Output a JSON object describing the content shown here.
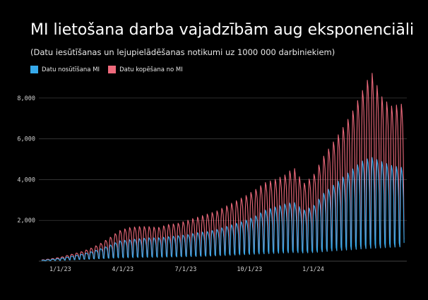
{
  "header": {
    "title": "MI lietošana darba vajadzībām aug eksponenciāli",
    "subtitle": "(Datu iesūtīšanas un lejupielādēšanas notikumi uz 1000 000 darbiniekiem)"
  },
  "colors": {
    "upload": "#36a9ea",
    "copy": "#ee6a7c",
    "grid": "#3a3a3a",
    "background": "#000000"
  },
  "chart_data": {
    "type": "line",
    "x_range": [
      "2022-12-01",
      "2024-05-15"
    ],
    "ylim": [
      0,
      9000
    ],
    "grid": true,
    "legend_position": "top-left",
    "y_ticks": [
      2000,
      4000,
      6000,
      8000
    ],
    "y_tick_labels": [
      "2,000",
      "4,000",
      "6,000",
      "8,000"
    ],
    "x_ticks": [
      "2023-01-01",
      "2023-04-01",
      "2023-07-01",
      "2023-10-01",
      "2024-01-01"
    ],
    "x_tick_labels": [
      "1/1/23",
      "4/1/23",
      "7/1/23",
      "10/1/23",
      "1/1/24"
    ],
    "sampling": "weekly weekday peaks and weekend troughs",
    "series": [
      {
        "name": "Datu nosūtīšana MI",
        "color": "#36a9ea",
        "points": [
          {
            "date": "2022-12-05",
            "peak": 40,
            "trough": 20
          },
          {
            "date": "2022-12-19",
            "peak": 90,
            "trough": 30
          },
          {
            "date": "2023-01-02",
            "peak": 140,
            "trough": 40
          },
          {
            "date": "2023-01-16",
            "peak": 240,
            "trough": 60
          },
          {
            "date": "2023-01-30",
            "peak": 330,
            "trough": 80
          },
          {
            "date": "2023-02-13",
            "peak": 450,
            "trough": 100
          },
          {
            "date": "2023-02-27",
            "peak": 600,
            "trough": 120
          },
          {
            "date": "2023-03-13",
            "peak": 780,
            "trough": 140
          },
          {
            "date": "2023-03-27",
            "peak": 1000,
            "trough": 160
          },
          {
            "date": "2023-04-10",
            "peak": 1050,
            "trough": 170
          },
          {
            "date": "2023-04-24",
            "peak": 1100,
            "trough": 180
          },
          {
            "date": "2023-05-08",
            "peak": 1150,
            "trough": 185
          },
          {
            "date": "2023-05-22",
            "peak": 1150,
            "trough": 190
          },
          {
            "date": "2023-06-05",
            "peak": 1200,
            "trough": 200
          },
          {
            "date": "2023-06-19",
            "peak": 1250,
            "trough": 210
          },
          {
            "date": "2023-07-03",
            "peak": 1300,
            "trough": 220
          },
          {
            "date": "2023-07-17",
            "peak": 1400,
            "trough": 230
          },
          {
            "date": "2023-07-31",
            "peak": 1450,
            "trough": 240
          },
          {
            "date": "2023-08-14",
            "peak": 1550,
            "trough": 260
          },
          {
            "date": "2023-08-28",
            "peak": 1700,
            "trough": 280
          },
          {
            "date": "2023-09-11",
            "peak": 1850,
            "trough": 300
          },
          {
            "date": "2023-09-25",
            "peak": 2000,
            "trough": 320
          },
          {
            "date": "2023-10-09",
            "peak": 2200,
            "trough": 340
          },
          {
            "date": "2023-10-23",
            "peak": 2500,
            "trough": 360
          },
          {
            "date": "2023-11-06",
            "peak": 2650,
            "trough": 380
          },
          {
            "date": "2023-11-20",
            "peak": 2800,
            "trough": 400
          },
          {
            "date": "2023-12-04",
            "peak": 2900,
            "trough": 420
          },
          {
            "date": "2023-12-18",
            "peak": 2500,
            "trough": 400
          },
          {
            "date": "2024-01-01",
            "peak": 2700,
            "trough": 420
          },
          {
            "date": "2024-01-15",
            "peak": 3300,
            "trough": 460
          },
          {
            "date": "2024-01-29",
            "peak": 3700,
            "trough": 500
          },
          {
            "date": "2024-02-12",
            "peak": 4100,
            "trough": 530
          },
          {
            "date": "2024-02-26",
            "peak": 4500,
            "trough": 560
          },
          {
            "date": "2024-03-11",
            "peak": 4900,
            "trough": 600
          },
          {
            "date": "2024-03-25",
            "peak": 5100,
            "trough": 630
          },
          {
            "date": "2024-04-08",
            "peak": 4900,
            "trough": 650
          },
          {
            "date": "2024-04-22",
            "peak": 4700,
            "trough": 680
          },
          {
            "date": "2024-05-06",
            "peak": 4600,
            "trough": 700
          }
        ]
      },
      {
        "name": "Datu kopēšana no MI",
        "color": "#ee6a7c",
        "points": [
          {
            "date": "2022-12-05",
            "peak": 60,
            "trough": 25
          },
          {
            "date": "2022-12-19",
            "peak": 120,
            "trough": 35
          },
          {
            "date": "2023-01-02",
            "peak": 200,
            "trough": 50
          },
          {
            "date": "2023-01-16",
            "peak": 330,
            "trough": 70
          },
          {
            "date": "2023-01-30",
            "peak": 450,
            "trough": 90
          },
          {
            "date": "2023-02-13",
            "peak": 620,
            "trough": 110
          },
          {
            "date": "2023-02-27",
            "peak": 850,
            "trough": 130
          },
          {
            "date": "2023-03-13",
            "peak": 1150,
            "trough": 150
          },
          {
            "date": "2023-03-27",
            "peak": 1500,
            "trough": 170
          },
          {
            "date": "2023-04-10",
            "peak": 1650,
            "trough": 180
          },
          {
            "date": "2023-04-24",
            "peak": 1700,
            "trough": 190
          },
          {
            "date": "2023-05-08",
            "peak": 1700,
            "trough": 195
          },
          {
            "date": "2023-05-22",
            "peak": 1650,
            "trough": 200
          },
          {
            "date": "2023-06-05",
            "peak": 1800,
            "trough": 210
          },
          {
            "date": "2023-06-19",
            "peak": 1850,
            "trough": 220
          },
          {
            "date": "2023-07-03",
            "peak": 2000,
            "trough": 230
          },
          {
            "date": "2023-07-17",
            "peak": 2150,
            "trough": 240
          },
          {
            "date": "2023-07-31",
            "peak": 2300,
            "trough": 250
          },
          {
            "date": "2023-08-14",
            "peak": 2450,
            "trough": 270
          },
          {
            "date": "2023-08-28",
            "peak": 2700,
            "trough": 290
          },
          {
            "date": "2023-09-11",
            "peak": 2950,
            "trough": 310
          },
          {
            "date": "2023-09-25",
            "peak": 3200,
            "trough": 330
          },
          {
            "date": "2023-10-09",
            "peak": 3500,
            "trough": 350
          },
          {
            "date": "2023-10-23",
            "peak": 3850,
            "trough": 370
          },
          {
            "date": "2023-11-06",
            "peak": 4000,
            "trough": 390
          },
          {
            "date": "2023-11-20",
            "peak": 4200,
            "trough": 410
          },
          {
            "date": "2023-12-04",
            "peak": 4600,
            "trough": 430
          },
          {
            "date": "2023-12-18",
            "peak": 3800,
            "trough": 410
          },
          {
            "date": "2024-01-01",
            "peak": 4200,
            "trough": 430
          },
          {
            "date": "2024-01-15",
            "peak": 5100,
            "trough": 470
          },
          {
            "date": "2024-01-29",
            "peak": 5800,
            "trough": 510
          },
          {
            "date": "2024-02-12",
            "peak": 6500,
            "trough": 540
          },
          {
            "date": "2024-02-26",
            "peak": 7300,
            "trough": 570
          },
          {
            "date": "2024-03-11",
            "peak": 8300,
            "trough": 610
          },
          {
            "date": "2024-03-25",
            "peak": 9300,
            "trough": 640
          },
          {
            "date": "2024-04-08",
            "peak": 8100,
            "trough": 660
          },
          {
            "date": "2024-04-22",
            "peak": 7600,
            "trough": 690
          },
          {
            "date": "2024-05-06",
            "peak": 7700,
            "trough": 710
          }
        ]
      }
    ]
  }
}
